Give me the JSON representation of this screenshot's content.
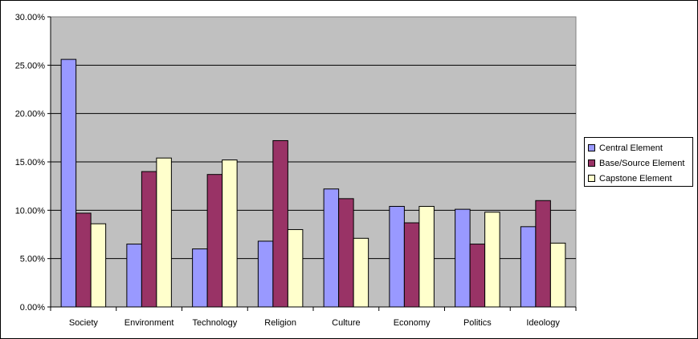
{
  "chart_data": {
    "type": "bar",
    "categories": [
      "Society",
      "Environment",
      "Technology",
      "Religion",
      "Culture",
      "Economy",
      "Politics",
      "Ideology"
    ],
    "series": [
      {
        "name": "Central Element",
        "color": "#9999ff",
        "values": [
          25.6,
          6.5,
          6.0,
          6.8,
          12.2,
          10.4,
          10.1,
          8.3
        ]
      },
      {
        "name": "Base/Source Element",
        "color": "#993366",
        "values": [
          9.7,
          14.0,
          13.7,
          17.2,
          11.2,
          8.7,
          6.5,
          11.0
        ]
      },
      {
        "name": "Capstone Element",
        "color": "#ffffcc",
        "values": [
          8.6,
          15.4,
          15.2,
          8.0,
          7.1,
          10.4,
          9.8,
          6.6
        ]
      }
    ],
    "y_ticks": [
      "0.00%",
      "5.00%",
      "10.00%",
      "15.00%",
      "20.00%",
      "25.00%",
      "30.00%"
    ],
    "ylim": [
      0,
      30
    ],
    "plot_background": "#c0c0c0",
    "grid": true,
    "legend_position": "right"
  }
}
